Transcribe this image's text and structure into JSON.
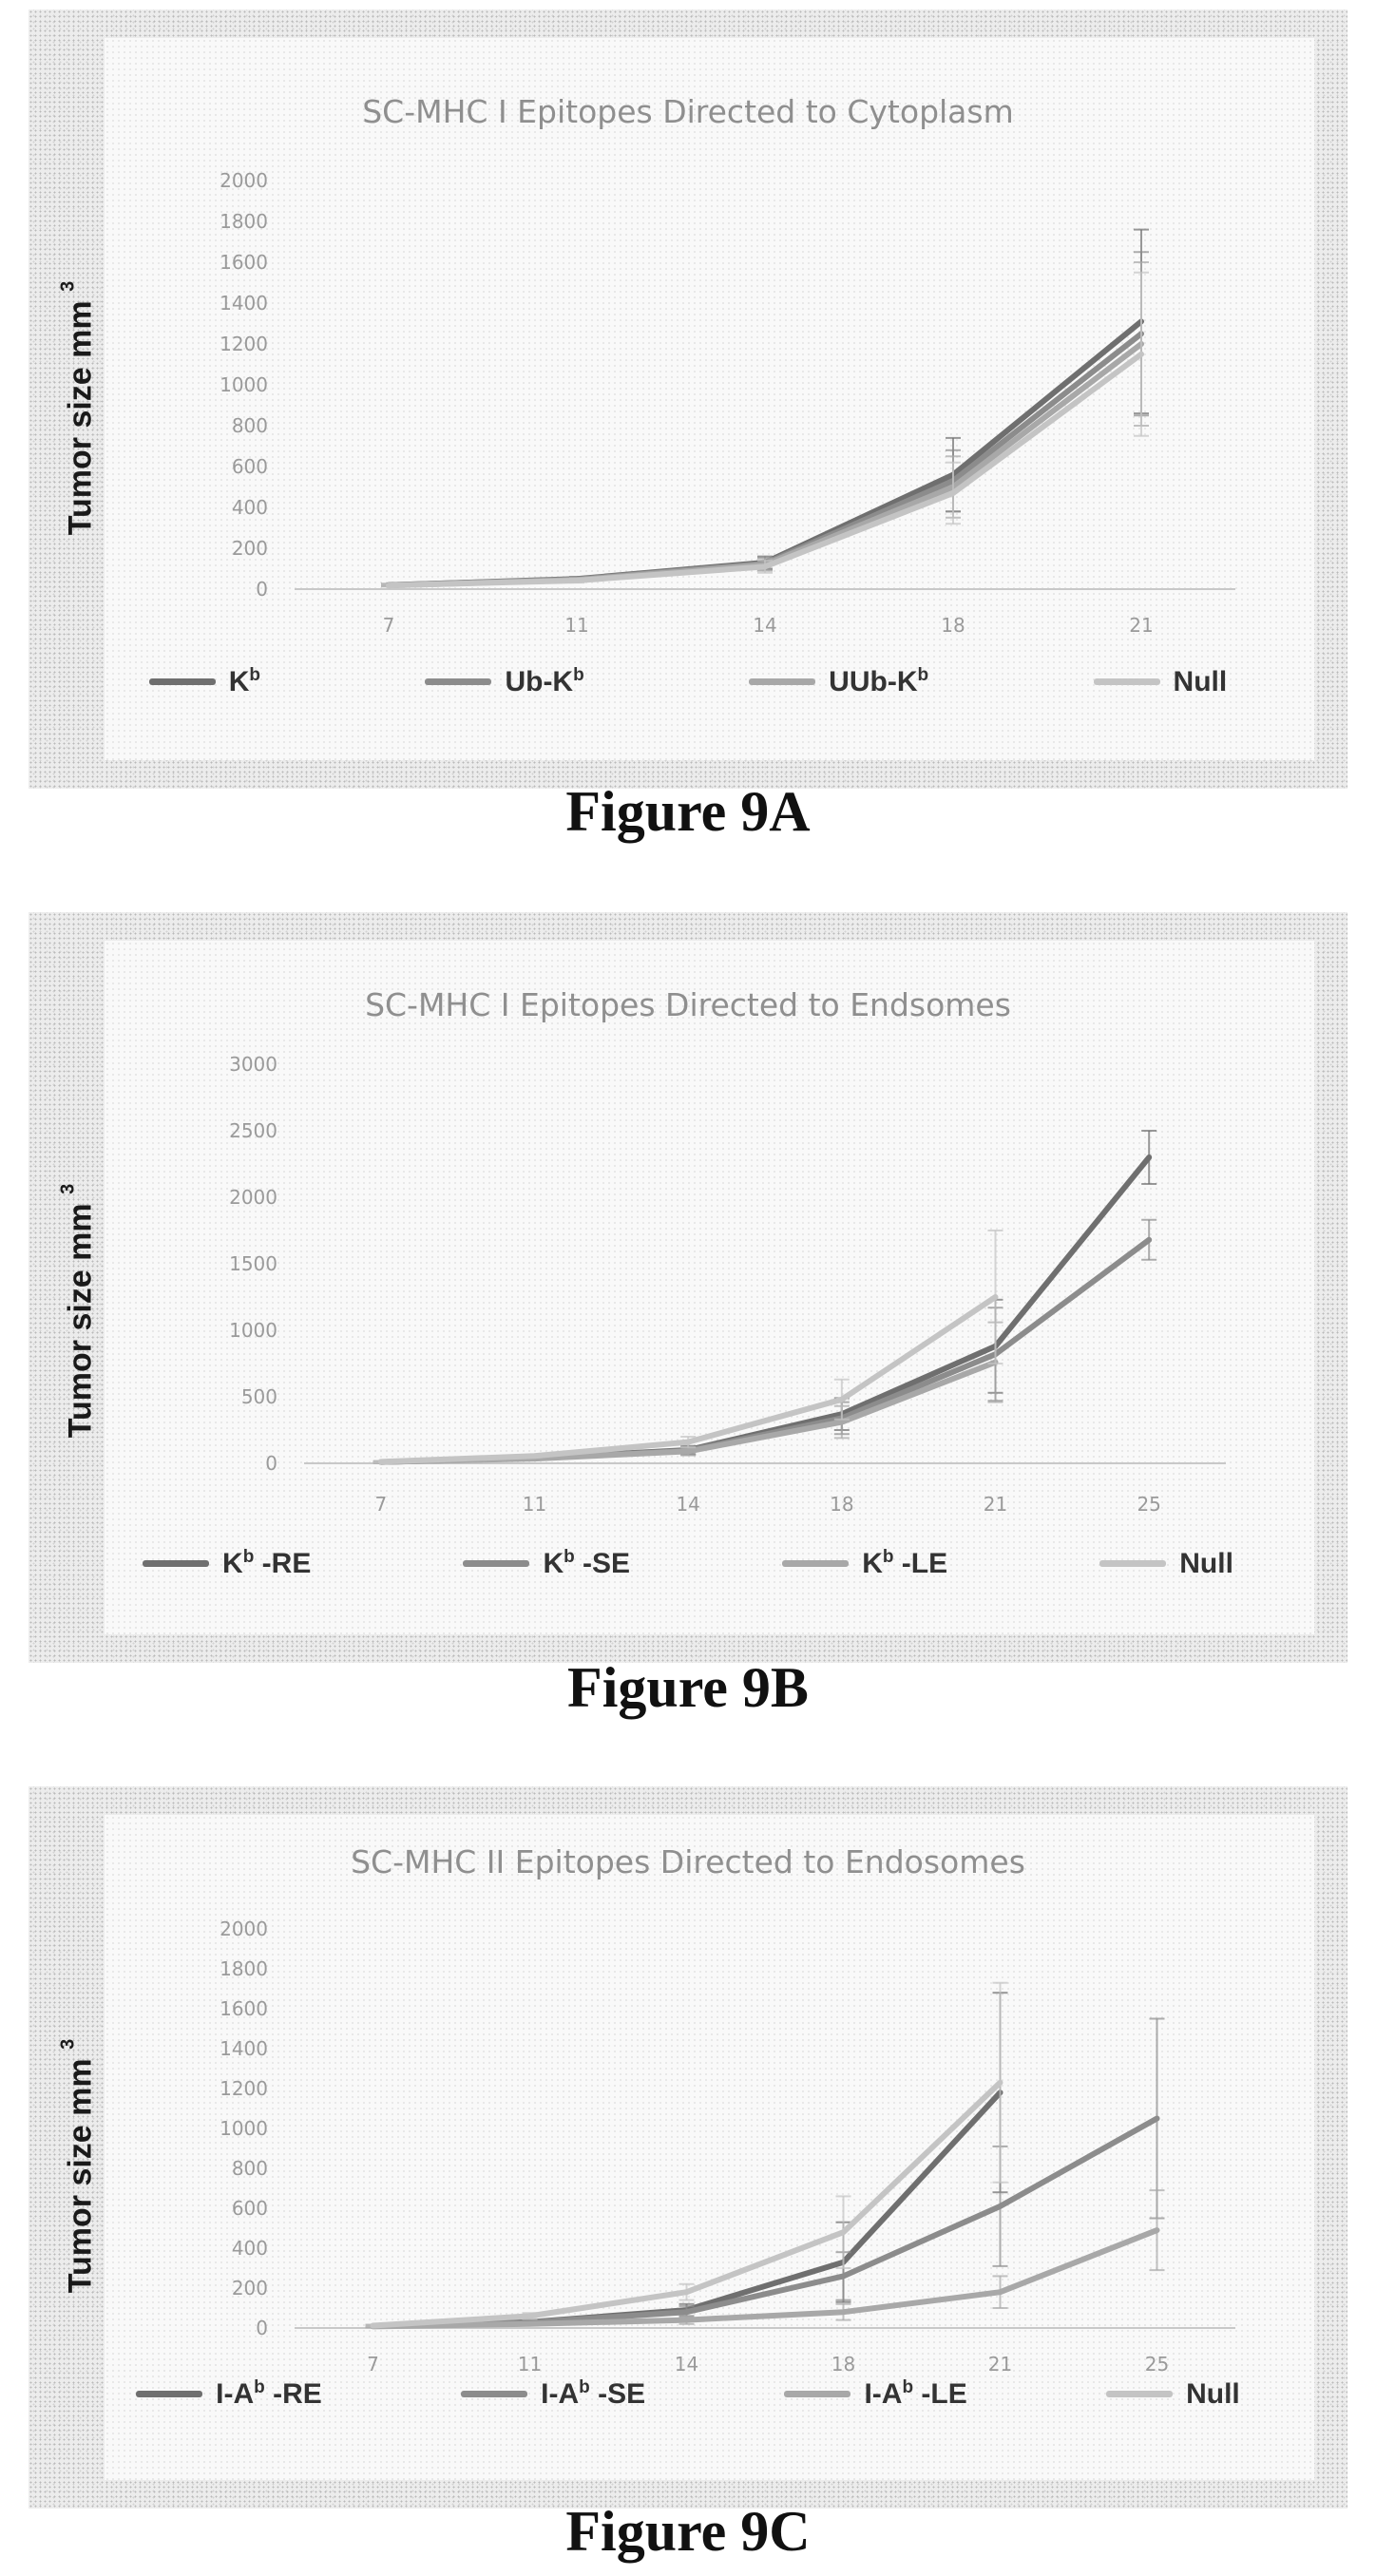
{
  "figures": [
    {
      "caption": "Figure 9A",
      "ylabel_main": "Tumor size mm",
      "ylabel_sup": "3",
      "legend": [
        {
          "base": "K",
          "sup": "b",
          "rest": ""
        },
        {
          "base": "Ub-K",
          "sup": "b",
          "rest": ""
        },
        {
          "base": "UUb-K",
          "sup": "b",
          "rest": ""
        },
        {
          "base": "Null",
          "sup": "",
          "rest": ""
        }
      ]
    },
    {
      "caption": "Figure 9B",
      "ylabel_main": "Tumor size mm",
      "ylabel_sup": "3",
      "legend": [
        {
          "base": "K",
          "sup": "b",
          "rest": " -RE"
        },
        {
          "base": "K",
          "sup": "b",
          "rest": " -SE"
        },
        {
          "base": "K",
          "sup": "b",
          "rest": " -LE"
        },
        {
          "base": "Null",
          "sup": "",
          "rest": ""
        }
      ]
    },
    {
      "caption": "Figure 9C",
      "ylabel_main": "Tumor size mm",
      "ylabel_sup": "3",
      "legend": [
        {
          "base": "I-A",
          "sup": "b",
          "rest": " -RE"
        },
        {
          "base": "I-A",
          "sup": "b",
          "rest": " -SE"
        },
        {
          "base": "I-A",
          "sup": "b",
          "rest": " -LE"
        },
        {
          "base": "Null",
          "sup": "",
          "rest": ""
        }
      ]
    }
  ],
  "chart_data": [
    {
      "type": "line",
      "title": "SC-MHC I Epitopes Directed to Cytoplasm",
      "ylabel": "Tumor size mm 3",
      "xlabel": "",
      "categories": [
        "7",
        "11",
        "14",
        "18",
        "21"
      ],
      "ylim": [
        0,
        2000
      ],
      "yticks": [
        0,
        200,
        400,
        600,
        800,
        1000,
        1200,
        1400,
        1600,
        1800,
        2000
      ],
      "grid": false,
      "legend_position": "bottom",
      "series": [
        {
          "name": "Kb",
          "color": "#6f6f6f",
          "values": [
            20,
            50,
            130,
            560,
            1310
          ],
          "errors": [
            5,
            10,
            30,
            180,
            450
          ]
        },
        {
          "name": "Ub-Kb",
          "color": "#8c8c8c",
          "values": [
            20,
            48,
            125,
            530,
            1250
          ],
          "errors": [
            5,
            10,
            30,
            150,
            400
          ]
        },
        {
          "name": "UUb-Kb",
          "color": "#a8a8a8",
          "values": [
            18,
            45,
            120,
            500,
            1200
          ],
          "errors": [
            5,
            10,
            30,
            150,
            400
          ]
        },
        {
          "name": "Null",
          "color": "#c4c4c4",
          "values": [
            18,
            42,
            110,
            470,
            1150
          ],
          "errors": [
            5,
            10,
            30,
            150,
            400
          ]
        }
      ]
    },
    {
      "type": "line",
      "title": "SC-MHC I Epitopes Directed to Endsomes",
      "ylabel": "Tumor size mm 3",
      "xlabel": "",
      "categories": [
        "7",
        "11",
        "14",
        "18",
        "21",
        "25"
      ],
      "ylim": [
        0,
        3000
      ],
      "yticks": [
        0,
        500,
        1000,
        1500,
        2000,
        2500,
        3000
      ],
      "grid": false,
      "legend_position": "bottom",
      "series": [
        {
          "name": "Kb -RE",
          "color": "#6f6f6f",
          "values": [
            10,
            40,
            100,
            370,
            880,
            2300
          ],
          "errors": [
            5,
            10,
            30,
            120,
            350,
            200
          ]
        },
        {
          "name": "Kb -SE",
          "color": "#8c8c8c",
          "values": [
            10,
            38,
            95,
            340,
            820,
            1680
          ],
          "errors": [
            5,
            10,
            30,
            120,
            350,
            150
          ]
        },
        {
          "name": "Kb -LE",
          "color": "#a8a8a8",
          "values": [
            10,
            35,
            90,
            310,
            760,
            null
          ],
          "errors": [
            5,
            10,
            30,
            120,
            300,
            0
          ]
        },
        {
          "name": "Null",
          "color": "#c4c4c4",
          "values": [
            12,
            55,
            160,
            480,
            1250,
            null
          ],
          "errors": [
            5,
            10,
            40,
            150,
            500,
            0
          ]
        }
      ]
    },
    {
      "type": "line",
      "title": "SC-MHC II Epitopes Directed to Endosomes",
      "ylabel": "Tumor size mm 3",
      "xlabel": "",
      "categories": [
        "7",
        "11",
        "14",
        "18",
        "21",
        "25"
      ],
      "ylim": [
        0,
        2000
      ],
      "yticks": [
        0,
        200,
        400,
        600,
        800,
        1000,
        1200,
        1400,
        1600,
        1800,
        2000
      ],
      "grid": false,
      "legend_position": "bottom",
      "series": [
        {
          "name": "I-Ab -RE",
          "color": "#6f6f6f",
          "values": [
            10,
            30,
            90,
            330,
            1180,
            null
          ],
          "errors": [
            5,
            10,
            30,
            200,
            500,
            0
          ]
        },
        {
          "name": "I-Ab -SE",
          "color": "#8c8c8c",
          "values": [
            10,
            28,
            80,
            260,
            610,
            1050
          ],
          "errors": [
            5,
            10,
            30,
            120,
            300,
            500
          ]
        },
        {
          "name": "I-Ab -LE",
          "color": "#a8a8a8",
          "values": [
            8,
            20,
            40,
            80,
            180,
            490
          ],
          "errors": [
            5,
            8,
            20,
            40,
            80,
            200
          ]
        },
        {
          "name": "Null",
          "color": "#c4c4c4",
          "values": [
            12,
            60,
            180,
            480,
            1230,
            null
          ],
          "errors": [
            5,
            15,
            40,
            180,
            500,
            0
          ]
        }
      ]
    }
  ]
}
